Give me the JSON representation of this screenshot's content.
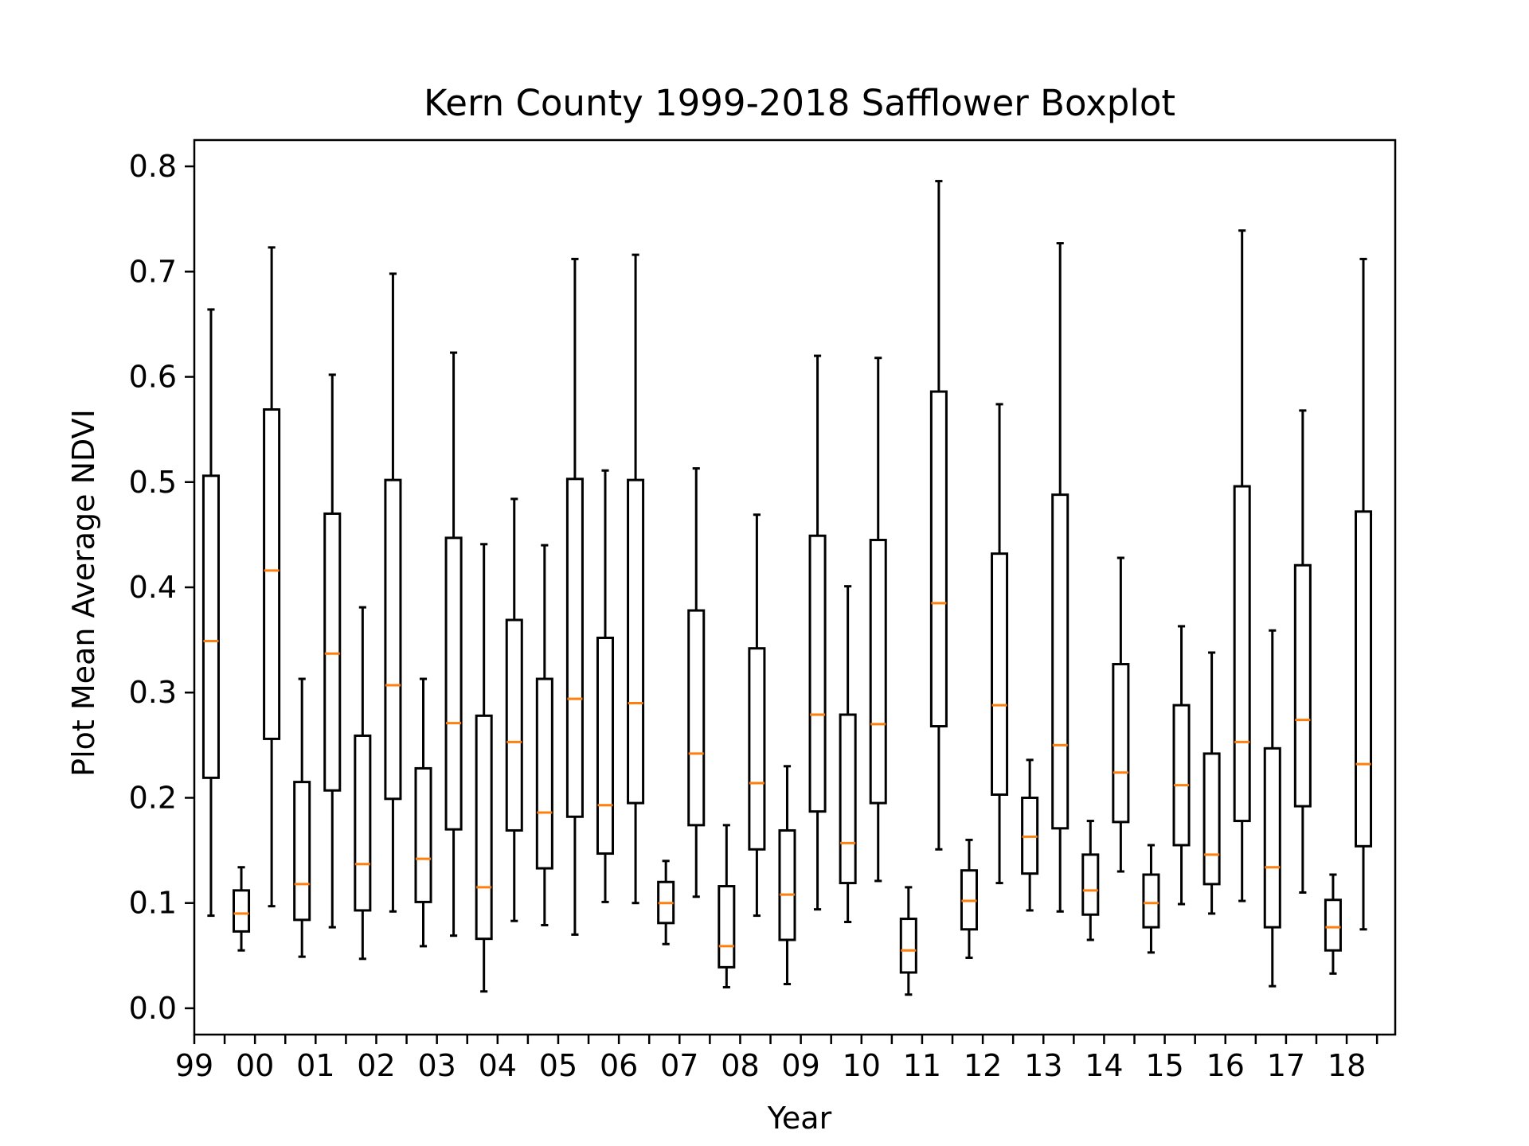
{
  "chart_data": {
    "type": "box",
    "title": "Kern County 1999-2018 Safflower Boxplot",
    "xlabel": "Year",
    "ylabel": "Plot Mean Average NDVI",
    "ylim": [
      -0.025,
      0.825
    ],
    "y_ticks": [
      0.0,
      0.1,
      0.2,
      0.3,
      0.4,
      0.5,
      0.6,
      0.7,
      0.8
    ],
    "y_tick_labels": [
      "0.0",
      "0.1",
      "0.2",
      "0.3",
      "0.4",
      "0.5",
      "0.6",
      "0.7",
      "0.8"
    ],
    "x_tick_labels": [
      "99",
      "00",
      "01",
      "02",
      "03",
      "04",
      "05",
      "06",
      "07",
      "08",
      "09",
      "10",
      "11",
      "12",
      "13",
      "14",
      "15",
      "16",
      "17",
      "18"
    ],
    "box_color": "#000000",
    "median_color": "#ff7f0e",
    "grid": false,
    "boxes": [
      {
        "whislo": 0.088,
        "q1": 0.219,
        "med": 0.349,
        "q3": 0.506,
        "whishi": 0.664
      },
      {
        "whislo": 0.055,
        "q1": 0.073,
        "med": 0.09,
        "q3": 0.112,
        "whishi": 0.134
      },
      {
        "whislo": 0.097,
        "q1": 0.256,
        "med": 0.416,
        "q3": 0.569,
        "whishi": 0.723
      },
      {
        "whislo": 0.049,
        "q1": 0.084,
        "med": 0.118,
        "q3": 0.215,
        "whishi": 0.313
      },
      {
        "whislo": 0.077,
        "q1": 0.207,
        "med": 0.337,
        "q3": 0.47,
        "whishi": 0.602
      },
      {
        "whislo": 0.047,
        "q1": 0.093,
        "med": 0.137,
        "q3": 0.259,
        "whishi": 0.381
      },
      {
        "whislo": 0.092,
        "q1": 0.199,
        "med": 0.307,
        "q3": 0.502,
        "whishi": 0.698
      },
      {
        "whislo": 0.059,
        "q1": 0.101,
        "med": 0.142,
        "q3": 0.228,
        "whishi": 0.313
      },
      {
        "whislo": 0.069,
        "q1": 0.17,
        "med": 0.271,
        "q3": 0.447,
        "whishi": 0.623
      },
      {
        "whislo": 0.016,
        "q1": 0.066,
        "med": 0.115,
        "q3": 0.278,
        "whishi": 0.441
      },
      {
        "whislo": 0.083,
        "q1": 0.169,
        "med": 0.253,
        "q3": 0.369,
        "whishi": 0.484
      },
      {
        "whislo": 0.079,
        "q1": 0.133,
        "med": 0.186,
        "q3": 0.313,
        "whishi": 0.44
      },
      {
        "whislo": 0.07,
        "q1": 0.182,
        "med": 0.294,
        "q3": 0.503,
        "whishi": 0.712
      },
      {
        "whislo": 0.101,
        "q1": 0.147,
        "med": 0.193,
        "q3": 0.352,
        "whishi": 0.511
      },
      {
        "whislo": 0.1,
        "q1": 0.195,
        "med": 0.29,
        "q3": 0.502,
        "whishi": 0.716
      },
      {
        "whislo": 0.061,
        "q1": 0.081,
        "med": 0.1,
        "q3": 0.12,
        "whishi": 0.14
      },
      {
        "whislo": 0.106,
        "q1": 0.174,
        "med": 0.242,
        "q3": 0.378,
        "whishi": 0.513
      },
      {
        "whislo": 0.02,
        "q1": 0.039,
        "med": 0.059,
        "q3": 0.116,
        "whishi": 0.174
      },
      {
        "whislo": 0.088,
        "q1": 0.151,
        "med": 0.214,
        "q3": 0.342,
        "whishi": 0.469
      },
      {
        "whislo": 0.023,
        "q1": 0.065,
        "med": 0.108,
        "q3": 0.169,
        "whishi": 0.23
      },
      {
        "whislo": 0.094,
        "q1": 0.187,
        "med": 0.279,
        "q3": 0.449,
        "whishi": 0.62
      },
      {
        "whislo": 0.082,
        "q1": 0.119,
        "med": 0.157,
        "q3": 0.279,
        "whishi": 0.401
      },
      {
        "whislo": 0.121,
        "q1": 0.195,
        "med": 0.27,
        "q3": 0.445,
        "whishi": 0.618
      },
      {
        "whislo": 0.013,
        "q1": 0.034,
        "med": 0.055,
        "q3": 0.085,
        "whishi": 0.115
      },
      {
        "whislo": 0.151,
        "q1": 0.268,
        "med": 0.385,
        "q3": 0.586,
        "whishi": 0.786
      },
      {
        "whislo": 0.048,
        "q1": 0.075,
        "med": 0.102,
        "q3": 0.131,
        "whishi": 0.16
      },
      {
        "whislo": 0.119,
        "q1": 0.203,
        "med": 0.288,
        "q3": 0.432,
        "whishi": 0.574
      },
      {
        "whislo": 0.093,
        "q1": 0.128,
        "med": 0.163,
        "q3": 0.2,
        "whishi": 0.236
      },
      {
        "whislo": 0.092,
        "q1": 0.171,
        "med": 0.25,
        "q3": 0.488,
        "whishi": 0.727
      },
      {
        "whislo": 0.065,
        "q1": 0.089,
        "med": 0.112,
        "q3": 0.146,
        "whishi": 0.178
      },
      {
        "whislo": 0.13,
        "q1": 0.177,
        "med": 0.224,
        "q3": 0.327,
        "whishi": 0.428
      },
      {
        "whislo": 0.053,
        "q1": 0.077,
        "med": 0.1,
        "q3": 0.127,
        "whishi": 0.155
      },
      {
        "whislo": 0.099,
        "q1": 0.155,
        "med": 0.212,
        "q3": 0.288,
        "whishi": 0.363
      },
      {
        "whislo": 0.09,
        "q1": 0.118,
        "med": 0.146,
        "q3": 0.242,
        "whishi": 0.338
      },
      {
        "whislo": 0.102,
        "q1": 0.178,
        "med": 0.253,
        "q3": 0.496,
        "whishi": 0.739
      },
      {
        "whislo": 0.021,
        "q1": 0.077,
        "med": 0.134,
        "q3": 0.247,
        "whishi": 0.359
      },
      {
        "whislo": 0.11,
        "q1": 0.192,
        "med": 0.274,
        "q3": 0.421,
        "whishi": 0.568
      },
      {
        "whislo": 0.033,
        "q1": 0.055,
        "med": 0.077,
        "q3": 0.103,
        "whishi": 0.127
      },
      {
        "whislo": 0.075,
        "q1": 0.154,
        "med": 0.232,
        "q3": 0.472,
        "whishi": 0.712
      }
    ]
  }
}
